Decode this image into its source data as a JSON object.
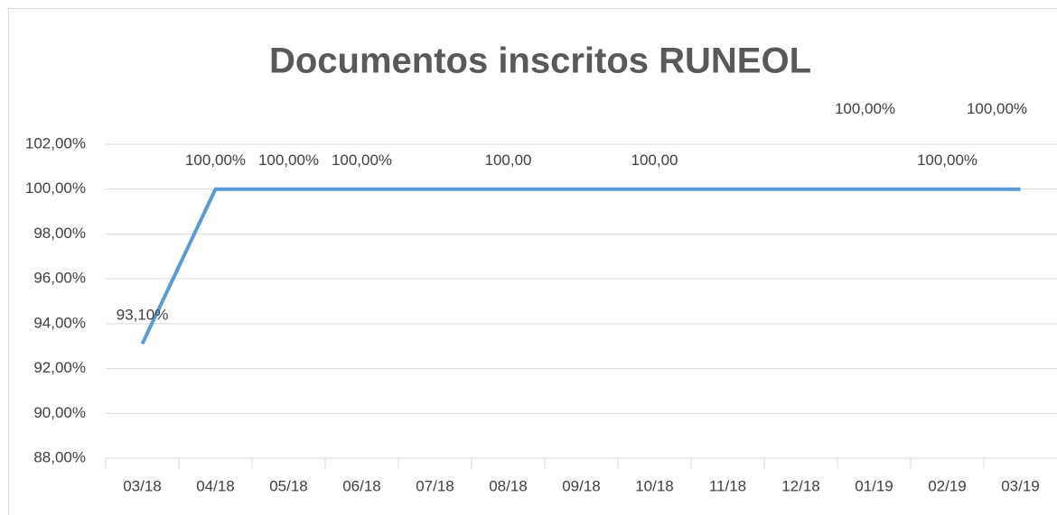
{
  "chart_data": {
    "type": "line",
    "title": "Documentos inscritos RUNEOL",
    "categories": [
      "03/18",
      "04/18",
      "05/18",
      "06/18",
      "07/18",
      "08/18",
      "09/18",
      "10/18",
      "11/18",
      "12/18",
      "01/19",
      "02/19",
      "03/19"
    ],
    "series": [
      {
        "name": "Documentos inscritos",
        "color": "#5b9bd5",
        "values": [
          93.1,
          100,
          100,
          100,
          100,
          100,
          100,
          100,
          100,
          100,
          100,
          100,
          100
        ],
        "value_labels": [
          "93,10%",
          "100,00%",
          "100,00%",
          "100,00%",
          null,
          "100,00",
          null,
          "100,00",
          null,
          null,
          "100,00%",
          "100,00%",
          "100,00%"
        ]
      }
    ],
    "ylim": [
      88,
      102
    ],
    "yticks": [
      {
        "value": 88,
        "label": "88,00%"
      },
      {
        "value": 90,
        "label": "90,00%"
      },
      {
        "value": 92,
        "label": "92,00%"
      },
      {
        "value": 94,
        "label": "94,00%"
      },
      {
        "value": 96,
        "label": "96,00%"
      },
      {
        "value": 98,
        "label": "98,00%"
      },
      {
        "value": 100,
        "label": "100,00%"
      },
      {
        "value": 102,
        "label": "102,00%"
      }
    ],
    "grid": true
  }
}
